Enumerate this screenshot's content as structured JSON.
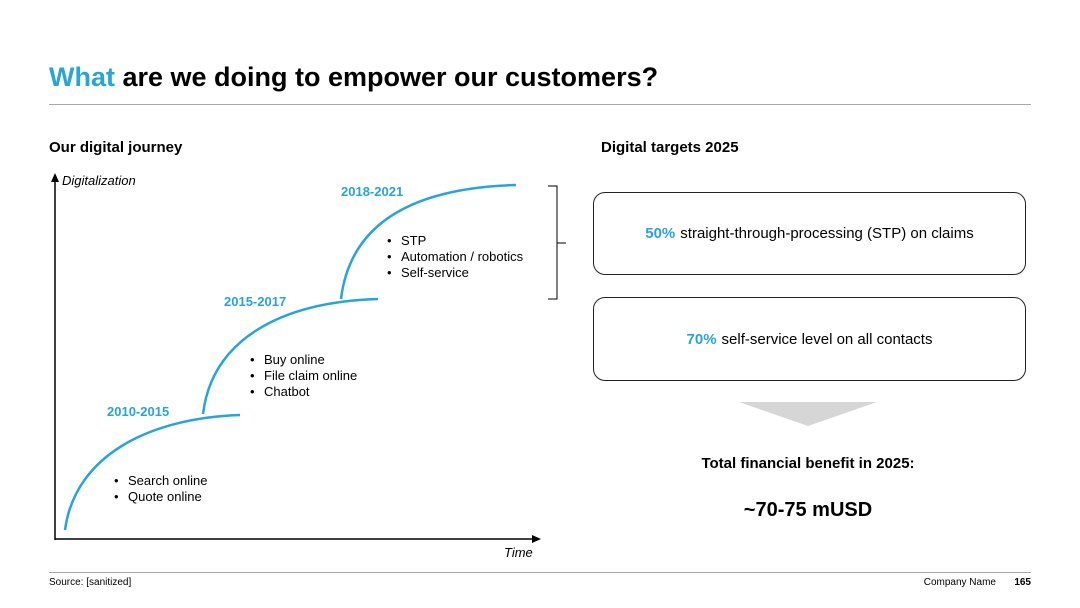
{
  "title": {
    "highlight": "What",
    "rest": " are we doing to empower our customers?"
  },
  "left": {
    "heading": "Our digital journey",
    "y_axis_label": "Digitalization",
    "x_axis_label": "Time",
    "phases": [
      {
        "period": "2010-2015",
        "items": [
          "Search online",
          "Quote online"
        ]
      },
      {
        "period": "2015-2017",
        "items": [
          "Buy online",
          "File claim online",
          "Chatbot"
        ]
      },
      {
        "period": "2018-2021",
        "items": [
          "STP",
          "Automation / robotics",
          "Self-service"
        ]
      }
    ]
  },
  "right": {
    "heading": "Digital targets 2025",
    "targets": [
      {
        "value": "50%",
        "text": "straight-through-processing (STP) on claims"
      },
      {
        "value": "70%",
        "text": "self-service level on all contacts"
      }
    ],
    "benefit_label": "Total financial benefit in 2025:",
    "benefit_value": "~70-75 mUSD"
  },
  "footer": {
    "source": "Source: [sanitized]",
    "company": "Company Name",
    "page": "165"
  },
  "colors": {
    "accent": "#2aa3d8",
    "text": "#000000",
    "rule": "#a8a8a8",
    "arrow": "#d6d6d6"
  }
}
